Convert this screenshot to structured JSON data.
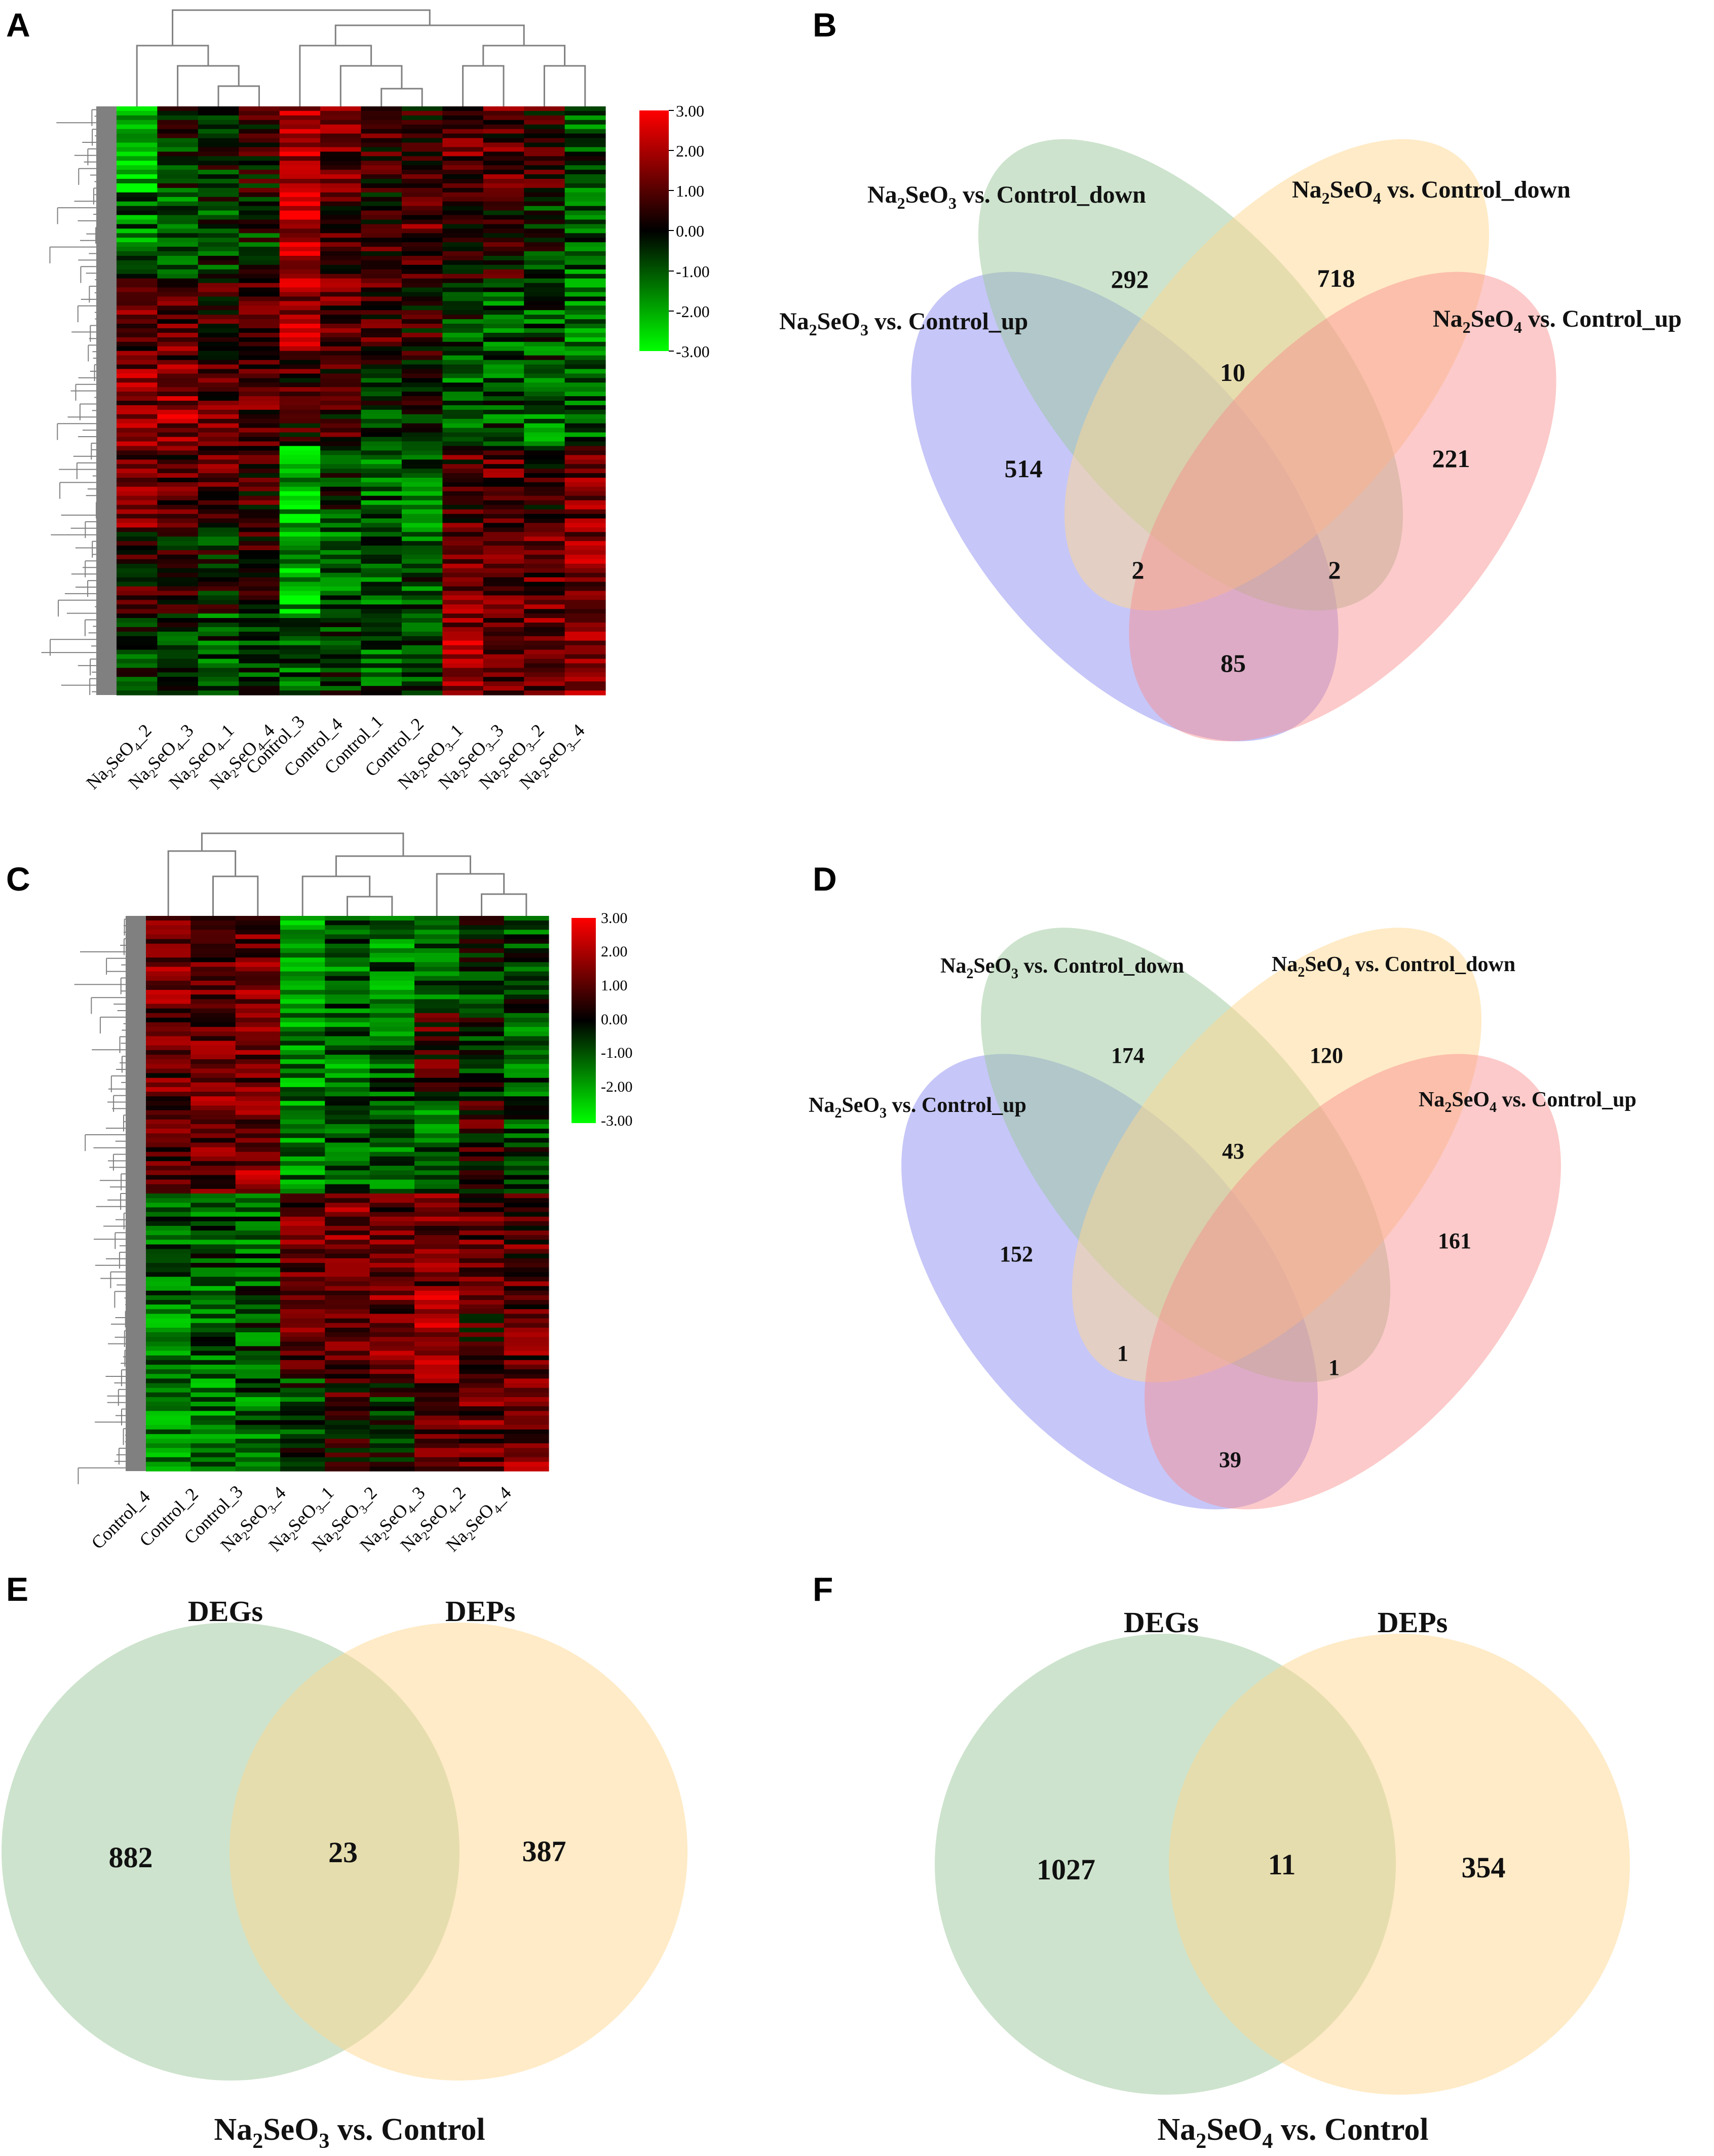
{
  "panels": {
    "A": {
      "letter": "A",
      "scale": {
        "ticks": [
          "3.00",
          "2.00",
          "1.00",
          "0.00",
          "-1.00",
          "-2.00",
          "-3.00"
        ],
        "min": -3,
        "max": 3
      },
      "samples": [
        {
          "pre": "Na",
          "sub1": "2",
          "mid": "SeO",
          "sub2": "4",
          "post": "_2"
        },
        {
          "pre": "Na",
          "sub1": "2",
          "mid": "SeO",
          "sub2": "4",
          "post": "_3"
        },
        {
          "pre": "Na",
          "sub1": "2",
          "mid": "SeO",
          "sub2": "4",
          "post": "_1"
        },
        {
          "pre": "Na",
          "sub1": "2",
          "mid": "SeO",
          "sub2": "4",
          "post": "_4"
        },
        {
          "pre": "Control_3",
          "sub1": "",
          "mid": "",
          "sub2": "",
          "post": ""
        },
        {
          "pre": "Control_4",
          "sub1": "",
          "mid": "",
          "sub2": "",
          "post": ""
        },
        {
          "pre": "Control_1",
          "sub1": "",
          "mid": "",
          "sub2": "",
          "post": ""
        },
        {
          "pre": "Control_2",
          "sub1": "",
          "mid": "",
          "sub2": "",
          "post": ""
        },
        {
          "pre": "Na",
          "sub1": "2",
          "mid": "SeO",
          "sub2": "3",
          "post": "_1"
        },
        {
          "pre": "Na",
          "sub1": "2",
          "mid": "SeO",
          "sub2": "3",
          "post": "_3"
        },
        {
          "pre": "Na",
          "sub1": "2",
          "mid": "SeO",
          "sub2": "3",
          "post": "_2"
        },
        {
          "pre": "Na",
          "sub1": "2",
          "mid": "SeO",
          "sub2": "3",
          "post": "_4"
        }
      ]
    },
    "B": {
      "letter": "B",
      "sets": [
        {
          "pre": "Na",
          "sub1": "2",
          "mid": "SeO",
          "sub2": "3",
          "post": " vs. Control_up"
        },
        {
          "pre": "Na",
          "sub1": "2",
          "mid": "SeO",
          "sub2": "3",
          "post": " vs. Control_down"
        },
        {
          "pre": "Na",
          "sub1": "2",
          "mid": "SeO",
          "sub2": "4",
          "post": " vs. Control_down"
        },
        {
          "pre": "Na",
          "sub1": "2",
          "mid": "SeO",
          "sub2": "4",
          "post": " vs. Control_up"
        }
      ],
      "regions": [
        "292",
        "718",
        "10",
        "514",
        "221",
        "2",
        "2",
        "85"
      ]
    },
    "C": {
      "letter": "C",
      "scale": {
        "ticks": [
          "3.00",
          "2.00",
          "1.00",
          "0.00",
          "-1.00",
          "-2.00",
          "-3.00"
        ],
        "min": -3,
        "max": 3
      },
      "samples": [
        {
          "pre": "Control_4",
          "sub1": "",
          "mid": "",
          "sub2": "",
          "post": ""
        },
        {
          "pre": "Control_2",
          "sub1": "",
          "mid": "",
          "sub2": "",
          "post": ""
        },
        {
          "pre": "Control_3",
          "sub1": "",
          "mid": "",
          "sub2": "",
          "post": ""
        },
        {
          "pre": "Na",
          "sub1": "2",
          "mid": "SeO",
          "sub2": "3",
          "post": "_4"
        },
        {
          "pre": "Na",
          "sub1": "2",
          "mid": "SeO",
          "sub2": "3",
          "post": "_1"
        },
        {
          "pre": "Na",
          "sub1": "2",
          "mid": "SeO",
          "sub2": "3",
          "post": "_2"
        },
        {
          "pre": "Na",
          "sub1": "2",
          "mid": "SeO",
          "sub2": "4",
          "post": "_3"
        },
        {
          "pre": "Na",
          "sub1": "2",
          "mid": "SeO",
          "sub2": "4",
          "post": "_2"
        },
        {
          "pre": "Na",
          "sub1": "2",
          "mid": "SeO",
          "sub2": "4",
          "post": "_4"
        }
      ]
    },
    "D": {
      "letter": "D",
      "sets": [
        {
          "pre": "Na",
          "sub1": "2",
          "mid": "SeO",
          "sub2": "3",
          "post": " vs. Control_up"
        },
        {
          "pre": "Na",
          "sub1": "2",
          "mid": "SeO",
          "sub2": "3",
          "post": " vs. Control_down"
        },
        {
          "pre": "Na",
          "sub1": "2",
          "mid": "SeO",
          "sub2": "4",
          "post": " vs. Control_down"
        },
        {
          "pre": "Na",
          "sub1": "2",
          "mid": "SeO",
          "sub2": "4",
          "post": " vs. Control_up"
        }
      ],
      "regions": [
        "174",
        "120",
        "43",
        "152",
        "161",
        "1",
        "1",
        "39"
      ]
    },
    "E": {
      "letter": "E",
      "left": "DEGs",
      "right": "DEPs",
      "regions": [
        "882",
        "23",
        "387"
      ],
      "caption": {
        "pre": "Na",
        "sub1": "2",
        "mid": "SeO",
        "sub2": "3",
        "post": " vs. Control"
      }
    },
    "F": {
      "letter": "F",
      "left": "DEGs",
      "right": "DEPs",
      "regions": [
        "1027",
        "11",
        "354"
      ],
      "caption": {
        "pre": "Na",
        "sub1": "2",
        "mid": "SeO",
        "sub2": "4",
        "post": " vs. Control"
      }
    }
  },
  "colors": {
    "high": "#ff0000",
    "mid": "#000000",
    "low": "#00ff00",
    "dendro": "#808080",
    "venn_blue": "#8080f0",
    "venn_green": "#9cc79c",
    "venn_orange": "#ffd890",
    "venn_red": "#f88a8a"
  }
}
